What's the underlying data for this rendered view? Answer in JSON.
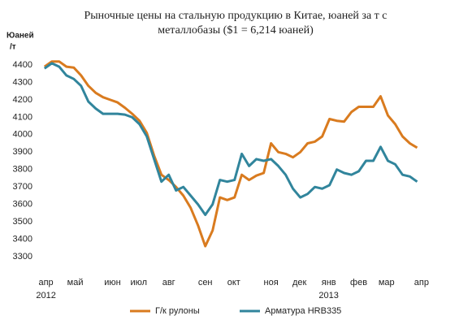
{
  "chart_data": {
    "type": "line",
    "title_lines": [
      "Рыночные цены на стальную продукцию в Китае, юаней за т с",
      "металлобазы ($1 = 6,214 юаней)"
    ],
    "y_label_lines": [
      "Юаней",
      "/т"
    ],
    "x": [
      0,
      1,
      2,
      3,
      4,
      5,
      6,
      7,
      8,
      9,
      10,
      11,
      12,
      13,
      14,
      15,
      16,
      17,
      18,
      19,
      20,
      21,
      22,
      23,
      24,
      25,
      26,
      27,
      28,
      29,
      30,
      31,
      32,
      33,
      34,
      35,
      36,
      37,
      38,
      39,
      40,
      41,
      42,
      43,
      44,
      45,
      46,
      47,
      48,
      49,
      50,
      51
    ],
    "series": [
      {
        "name": "Г/к рулоны",
        "color": "#d97b1f",
        "values": [
          4390,
          4420,
          4420,
          4390,
          4385,
          4340,
          4280,
          4240,
          4215,
          4200,
          4185,
          4155,
          4120,
          4080,
          4010,
          3880,
          3770,
          3740,
          3700,
          3650,
          3580,
          3480,
          3360,
          3450,
          3640,
          3625,
          3640,
          3770,
          3740,
          3765,
          3780,
          3950,
          3900,
          3890,
          3870,
          3900,
          3950,
          3960,
          3990,
          4090,
          4080,
          4075,
          4130,
          4160,
          4160,
          4160,
          4220,
          4110,
          4060,
          3990,
          3950,
          3925
        ]
      },
      {
        "name": "Арматура HRB335",
        "color": "#31859c",
        "values": [
          4380,
          4410,
          4390,
          4340,
          4320,
          4280,
          4190,
          4150,
          4120,
          4120,
          4120,
          4115,
          4100,
          4060,
          3990,
          3860,
          3730,
          3770,
          3680,
          3700,
          3650,
          3600,
          3540,
          3600,
          3740,
          3730,
          3740,
          3890,
          3820,
          3860,
          3850,
          3860,
          3820,
          3770,
          3690,
          3640,
          3660,
          3700,
          3690,
          3710,
          3800,
          3780,
          3770,
          3790,
          3850,
          3850,
          3930,
          3850,
          3830,
          3770,
          3760,
          3730
        ]
      }
    ],
    "xlim": [
      -0.2,
      52.5
    ],
    "xticks": [
      {
        "value": 0.2,
        "label": "апр"
      },
      {
        "value": 4.2,
        "label": "май"
      },
      {
        "value": 9.3,
        "label": "июн"
      },
      {
        "value": 12.9,
        "label": "июл"
      },
      {
        "value": 17,
        "label": "авг"
      },
      {
        "value": 22,
        "label": "сен"
      },
      {
        "value": 25.9,
        "label": "окт"
      },
      {
        "value": 31,
        "label": "ноя"
      },
      {
        "value": 34.9,
        "label": "дек"
      },
      {
        "value": 38.9,
        "label": "янв"
      },
      {
        "value": 43,
        "label": "фев"
      },
      {
        "value": 46.8,
        "label": "мар"
      },
      {
        "value": 51.6,
        "label": "апр"
      }
    ],
    "x_year_labels": [
      {
        "value": 0.2,
        "label": "2012"
      },
      {
        "value": 38.9,
        "label": "2013"
      }
    ],
    "ylim": [
      3300,
      4400
    ],
    "yticks": [
      3300,
      3400,
      3500,
      3600,
      3700,
      3800,
      3900,
      4000,
      4100,
      4200,
      4300,
      4400
    ],
    "grid": false,
    "legend": "bottom"
  }
}
